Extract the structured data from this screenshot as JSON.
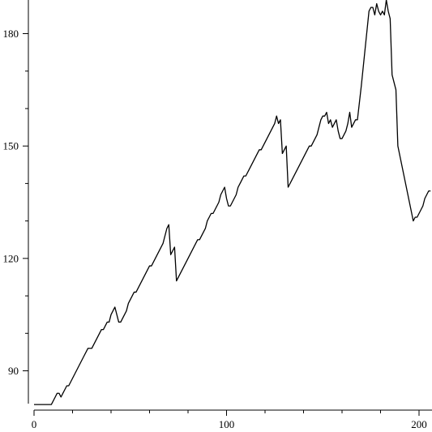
{
  "chart_data": {
    "type": "line",
    "title": "",
    "xlabel": "",
    "ylabel": "",
    "xlim": [
      0,
      207
    ],
    "ylim": [
      80.3,
      190
    ],
    "x_major_ticks": [
      0,
      100,
      200
    ],
    "x_minor_ticks": [
      20,
      40,
      60,
      80,
      120,
      140,
      160,
      180
    ],
    "y_major_ticks": [
      90,
      120,
      150,
      180
    ],
    "y_minor_ticks": [
      100,
      110,
      130,
      140,
      160,
      170
    ],
    "grid": false,
    "legend": "none",
    "line_color": "#000000",
    "series": [
      {
        "points": [
          [
            0,
            81
          ],
          [
            3,
            81
          ],
          [
            6,
            81
          ],
          [
            9,
            81
          ],
          [
            11,
            83
          ],
          [
            12,
            84
          ],
          [
            13,
            84
          ],
          [
            14,
            83
          ],
          [
            15,
            84
          ],
          [
            16,
            85
          ],
          [
            17,
            86
          ],
          [
            18,
            86
          ],
          [
            20,
            88
          ],
          [
            22,
            90
          ],
          [
            24,
            92
          ],
          [
            26,
            94
          ],
          [
            28,
            96
          ],
          [
            30,
            96
          ],
          [
            32,
            98
          ],
          [
            34,
            100
          ],
          [
            35,
            101
          ],
          [
            36,
            101
          ],
          [
            37,
            102
          ],
          [
            38,
            103
          ],
          [
            39,
            103
          ],
          [
            40,
            105
          ],
          [
            42,
            107
          ],
          [
            44,
            103
          ],
          [
            45,
            103
          ],
          [
            46,
            104
          ],
          [
            47,
            105
          ],
          [
            48,
            106
          ],
          [
            49,
            108
          ],
          [
            50,
            109
          ],
          [
            51,
            110
          ],
          [
            52,
            111
          ],
          [
            53,
            111
          ],
          [
            55,
            113
          ],
          [
            57,
            115
          ],
          [
            59,
            117
          ],
          [
            60,
            118
          ],
          [
            61,
            118
          ],
          [
            63,
            120
          ],
          [
            65,
            122
          ],
          [
            67,
            124
          ],
          [
            69,
            128
          ],
          [
            70,
            129
          ],
          [
            71,
            121
          ],
          [
            72,
            122
          ],
          [
            73,
            123
          ],
          [
            74,
            114
          ],
          [
            76,
            116
          ],
          [
            78,
            118
          ],
          [
            80,
            120
          ],
          [
            82,
            122
          ],
          [
            84,
            124
          ],
          [
            85,
            125
          ],
          [
            86,
            125
          ],
          [
            87,
            126
          ],
          [
            88,
            127
          ],
          [
            89,
            128
          ],
          [
            90,
            130
          ],
          [
            91,
            131
          ],
          [
            92,
            132
          ],
          [
            93,
            132
          ],
          [
            94,
            133
          ],
          [
            95,
            134
          ],
          [
            96,
            135
          ],
          [
            97,
            137
          ],
          [
            98,
            138
          ],
          [
            99,
            139
          ],
          [
            100,
            136
          ],
          [
            101,
            134
          ],
          [
            102,
            134
          ],
          [
            104,
            136
          ],
          [
            105,
            137
          ],
          [
            106,
            139
          ],
          [
            107,
            140
          ],
          [
            108,
            141
          ],
          [
            109,
            142
          ],
          [
            110,
            142
          ],
          [
            112,
            144
          ],
          [
            114,
            146
          ],
          [
            116,
            148
          ],
          [
            117,
            149
          ],
          [
            118,
            149
          ],
          [
            120,
            151
          ],
          [
            122,
            153
          ],
          [
            124,
            155
          ],
          [
            125,
            156
          ],
          [
            126,
            158
          ],
          [
            127,
            156
          ],
          [
            128,
            157
          ],
          [
            129,
            148
          ],
          [
            130,
            149
          ],
          [
            131,
            150
          ],
          [
            132,
            139
          ],
          [
            134,
            141
          ],
          [
            136,
            143
          ],
          [
            138,
            145
          ],
          [
            140,
            147
          ],
          [
            142,
            149
          ],
          [
            143,
            150
          ],
          [
            144,
            150
          ],
          [
            145,
            151
          ],
          [
            146,
            152
          ],
          [
            147,
            153
          ],
          [
            148,
            155
          ],
          [
            149,
            157
          ],
          [
            150,
            158
          ],
          [
            151,
            158
          ],
          [
            152,
            159
          ],
          [
            153,
            156
          ],
          [
            154,
            157
          ],
          [
            155,
            155
          ],
          [
            156,
            156
          ],
          [
            157,
            157
          ],
          [
            158,
            154
          ],
          [
            159,
            152
          ],
          [
            160,
            152
          ],
          [
            161,
            153
          ],
          [
            162,
            154
          ],
          [
            163,
            156
          ],
          [
            164,
            159
          ],
          [
            165,
            155
          ],
          [
            166,
            156
          ],
          [
            167,
            157
          ],
          [
            168,
            157
          ],
          [
            170,
            166
          ],
          [
            172,
            176
          ],
          [
            174,
            186
          ],
          [
            175,
            187
          ],
          [
            176,
            187
          ],
          [
            177,
            185
          ],
          [
            178,
            188
          ],
          [
            179,
            186
          ],
          [
            180,
            185
          ],
          [
            181,
            186
          ],
          [
            182,
            185
          ],
          [
            183,
            189
          ],
          [
            184,
            186
          ],
          [
            185,
            184
          ],
          [
            186,
            169
          ],
          [
            188,
            165
          ],
          [
            189,
            150
          ],
          [
            191,
            145
          ],
          [
            193,
            140
          ],
          [
            195,
            135
          ],
          [
            197,
            130
          ],
          [
            198,
            131
          ],
          [
            199,
            131
          ],
          [
            200,
            132
          ],
          [
            201,
            133
          ],
          [
            202,
            134
          ],
          [
            203,
            136
          ],
          [
            204,
            137
          ],
          [
            205,
            138
          ],
          [
            206,
            138
          ]
        ]
      }
    ]
  }
}
